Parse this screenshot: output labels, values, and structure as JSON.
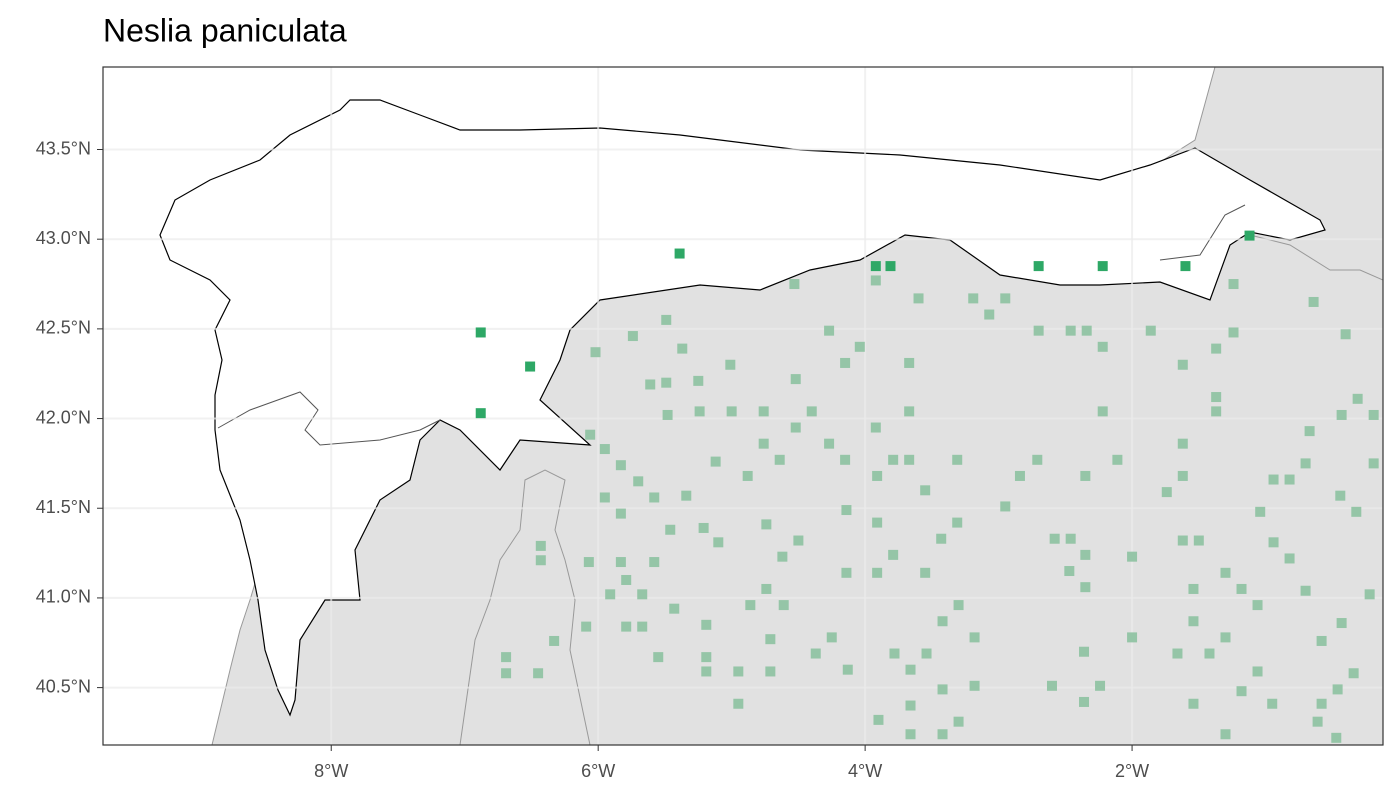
{
  "chart_data": {
    "type": "scatter",
    "title": "Neslia paniculata",
    "xlim": [
      -9.71,
      -0.12
    ],
    "ylim": [
      40.18,
      43.96
    ],
    "xticks": [
      {
        "value": -8,
        "label": "8°W"
      },
      {
        "value": -6,
        "label": "6°W"
      },
      {
        "value": -4,
        "label": "4°W"
      },
      {
        "value": -2,
        "label": "2°W"
      }
    ],
    "yticks": [
      {
        "value": 40.5,
        "label": "40.5°N"
      },
      {
        "value": 41.0,
        "label": "41.0°N"
      },
      {
        "value": 41.5,
        "label": "41.5°N"
      },
      {
        "value": 42.0,
        "label": "42.0°N"
      },
      {
        "value": 42.5,
        "label": "42.5°N"
      },
      {
        "value": 43.0,
        "label": "43.0°N"
      },
      {
        "value": 43.5,
        "label": "43.5°N"
      }
    ],
    "grid": true,
    "series": [
      {
        "color": "#95c5a7",
        "x": [
          -4.53,
          -3.6,
          -3.19,
          -2.95,
          -3.07,
          -0.64,
          -2.7,
          -2.46,
          -2.34,
          -1.86,
          -1.24,
          -1.37,
          -0.4,
          -1.24,
          -1.37,
          -1.37,
          -1.62,
          -1.62,
          -1.62,
          -1.74,
          -1.62,
          -1.5,
          -2.22,
          -2.22,
          -2.35,
          -2.11,
          -2.71,
          -2.84,
          -2.95,
          -3.31,
          -3.31,
          -3.43,
          -3.67,
          -3.67,
          -3.67,
          -3.79,
          -3.55,
          -3.91,
          -3.91,
          -3.79,
          -3.91,
          -3.55,
          -4.27,
          -4.04,
          -4.15,
          -3.92,
          -4.27,
          -4.15,
          -4.4,
          -4.52,
          -4.52,
          -4.76,
          -4.76,
          -4.64,
          -4.88,
          -5.0,
          -5.24,
          -5.12,
          -5.01,
          -5.37,
          -5.49,
          -5.25,
          -5.61,
          -5.49,
          -5.74,
          -6.02,
          -6.06,
          -5.95,
          -5.83,
          -5.95,
          -5.83,
          -5.7,
          -5.58,
          -5.34,
          -5.46,
          -5.21,
          -5.48,
          -5.1,
          -4.74,
          -4.5,
          -4.62,
          -4.74,
          -4.61,
          -4.86,
          -4.14,
          -4.14,
          -6.43,
          -6.43,
          -6.07,
          -5.83,
          -5.58,
          -5.91,
          -5.79,
          -5.67,
          -5.79,
          -5.43,
          -5.19,
          -5.19,
          -5.55,
          -5.67,
          -6.69,
          -6.69,
          -6.45,
          -6.33,
          -6.09,
          -5.19,
          -4.95,
          -4.71,
          -4.95,
          -4.71,
          -4.37,
          -4.25,
          -4.13,
          -3.78,
          -3.66,
          -3.54,
          -3.42,
          -3.3,
          -3.18,
          -3.66,
          -3.42,
          -3.18,
          -3.3,
          -3.9,
          -3.66,
          -3.42,
          -2.6,
          -2.36,
          -2.24,
          -2.36,
          -2.0,
          -1.66,
          -1.42,
          -1.54,
          -1.54,
          -1.3,
          -1.18,
          -1.06,
          -1.3,
          -1.06,
          -1.18,
          -1.54,
          -0.95,
          -1.3,
          -0.82,
          -0.94,
          -0.7,
          -0.58,
          -0.34,
          -0.46,
          -0.58,
          -0.61,
          -0.47,
          -0.43,
          -0.22,
          -0.32,
          -0.44,
          -0.7,
          -0.94,
          -0.82,
          -0.67,
          -0.43,
          -0.31,
          -0.19,
          -0.19,
          -1.04,
          -2.46,
          -2.58,
          -2.35,
          -2.47,
          -2.35,
          -2.0,
          -3.92
        ],
        "y": [
          42.75,
          42.67,
          42.67,
          42.67,
          42.58,
          42.65,
          42.49,
          42.49,
          42.49,
          42.49,
          42.48,
          42.39,
          42.47,
          42.75,
          42.12,
          42.04,
          42.3,
          41.86,
          41.68,
          41.59,
          41.32,
          41.32,
          42.4,
          42.04,
          41.68,
          41.77,
          41.77,
          41.68,
          41.51,
          41.77,
          41.42,
          41.33,
          42.31,
          42.04,
          41.77,
          41.77,
          41.6,
          41.68,
          41.42,
          41.24,
          41.14,
          41.14,
          42.49,
          42.4,
          42.31,
          41.95,
          41.86,
          41.77,
          42.04,
          41.95,
          42.22,
          42.04,
          41.86,
          41.77,
          41.68,
          42.04,
          42.04,
          41.76,
          42.3,
          42.39,
          42.2,
          42.21,
          42.19,
          42.55,
          42.46,
          42.37,
          41.91,
          41.83,
          41.74,
          41.56,
          41.47,
          41.65,
          41.56,
          41.57,
          41.38,
          41.39,
          42.02,
          41.31,
          41.41,
          41.32,
          41.23,
          41.05,
          40.96,
          40.96,
          41.49,
          41.14,
          41.29,
          41.21,
          41.2,
          41.2,
          41.2,
          41.02,
          41.1,
          41.02,
          40.84,
          40.94,
          40.85,
          40.67,
          40.67,
          40.84,
          40.67,
          40.58,
          40.58,
          40.76,
          40.84,
          40.59,
          40.59,
          40.59,
          40.41,
          40.77,
          40.69,
          40.78,
          40.6,
          40.69,
          40.6,
          40.69,
          40.87,
          40.96,
          40.78,
          40.4,
          40.49,
          40.51,
          40.31,
          40.32,
          40.24,
          40.24,
          40.51,
          40.7,
          40.51,
          40.42,
          40.78,
          40.69,
          40.69,
          40.87,
          41.05,
          41.14,
          41.05,
          40.96,
          40.78,
          40.59,
          40.48,
          40.41,
          40.41,
          40.24,
          41.22,
          41.31,
          41.04,
          40.76,
          40.58,
          40.49,
          40.41,
          40.31,
          40.22,
          40.86,
          41.02,
          41.48,
          41.57,
          41.75,
          41.66,
          41.66,
          41.93,
          42.02,
          42.11,
          42.02,
          41.75,
          41.48,
          41.33,
          41.33,
          41.24,
          41.15,
          41.06,
          41.23,
          42.77
        ]
      },
      {
        "color": "#2ea866",
        "x": [
          -5.39,
          -6.88,
          -6.51,
          -6.88,
          -3.92,
          -3.81,
          -2.7,
          -2.22,
          -1.6,
          -1.12
        ],
        "y": [
          42.92,
          42.48,
          42.29,
          42.03,
          42.85,
          42.85,
          42.85,
          42.85,
          42.85,
          43.02
        ]
      }
    ]
  }
}
